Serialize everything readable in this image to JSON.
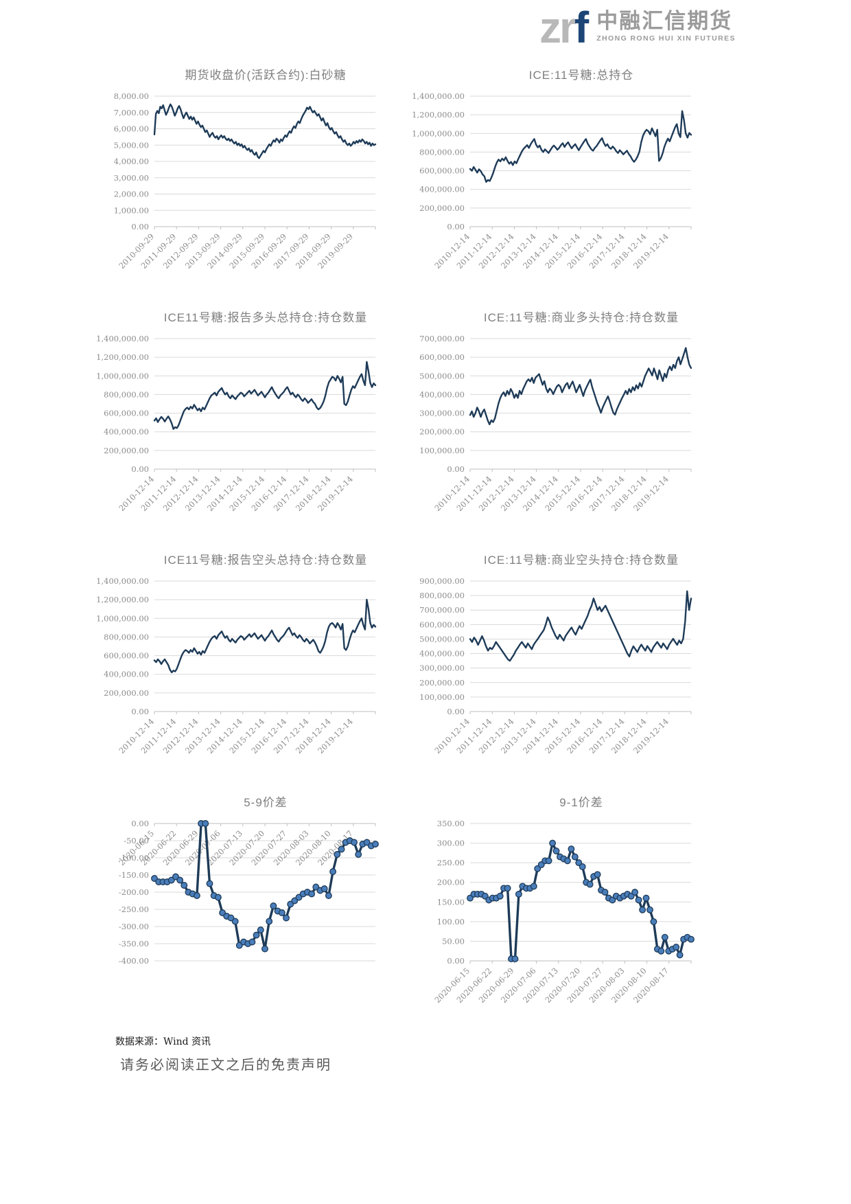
{
  "header": {
    "logo_zr": "zr",
    "logo_f": "f",
    "company_cn": "中融汇信期货",
    "company_en": "ZHONG RONG HUI XIN FUTURES"
  },
  "footer": {
    "source": "数据来源：Wind 资讯",
    "disclaimer": "请务必阅读正文之后的免责声明"
  },
  "colors": {
    "line": "#1e3b58",
    "marker_fill": "#4a7ebb",
    "grid": "#d9d9d9",
    "axis": "#bfbfbf",
    "title_gray": "#7f7f7f",
    "tick_gray": "#8c8c8c",
    "logo_blue": "#1d4677",
    "logo_gray": "#b8b8b8"
  },
  "chart_data": [
    {
      "id": "sugar-futures-close",
      "type": "line",
      "title": "期货收盘价(活跃合约):白砂糖",
      "markers": false,
      "x_axis": "bottom",
      "ylim": [
        0,
        8000
      ],
      "y_ticks": [
        "8,000.00",
        "7,000.00",
        "6,000.00",
        "5,000.00",
        "4,000.00",
        "3,000.00",
        "2,000.00",
        "1,000.00",
        "0.00"
      ],
      "x_labels": [
        "2010-09-29",
        "2011-09-29",
        "2012-09-29",
        "2013-09-29",
        "2014-09-29",
        "2015-09-29",
        "2016-09-29",
        "2017-09-29",
        "2018-09-29",
        "2019-09-29"
      ],
      "values": [
        5650,
        6900,
        7100,
        6950,
        7350,
        7250,
        7450,
        7150,
        6850,
        7050,
        7300,
        7500,
        7350,
        7100,
        6800,
        7000,
        7250,
        7400,
        7200,
        6900,
        6650,
        6850,
        7000,
        6800,
        6600,
        6750,
        6550,
        6700,
        6500,
        6300,
        6450,
        6250,
        6100,
        6200,
        6000,
        5800,
        5900,
        5700,
        5500,
        5650,
        5750,
        5550,
        5450,
        5550,
        5350,
        5500,
        5600,
        5450,
        5550,
        5400,
        5300,
        5400,
        5250,
        5350,
        5200,
        5100,
        5200,
        5000,
        5100,
        4950,
        5050,
        4850,
        4950,
        4800,
        4700,
        4800,
        4600,
        4700,
        4500,
        4400,
        4550,
        4300,
        4200,
        4350,
        4500,
        4650,
        4550,
        4750,
        4900,
        5050,
        4950,
        5150,
        5300,
        5200,
        5400,
        5300,
        5150,
        5350,
        5250,
        5450,
        5600,
        5500,
        5700,
        5850,
        5750,
        6000,
        6150,
        6050,
        6300,
        6450,
        6350,
        6600,
        6800,
        6950,
        7100,
        7300,
        7200,
        7350,
        7150,
        7000,
        7100,
        6950,
        6800,
        6900,
        6700,
        6500,
        6650,
        6400,
        6200,
        6350,
        6100,
        5950,
        6050,
        5850,
        5700,
        5800,
        5600,
        5450,
        5550,
        5350,
        5200,
        5300,
        5100,
        5000,
        5100,
        4950,
        5050,
        5200,
        5100,
        5250,
        5150,
        5300,
        5200,
        5350,
        5250,
        5100,
        5200,
        5050,
        5150,
        4950,
        5100,
        5000,
        5050
      ]
    },
    {
      "id": "ice11-total-open-interest",
      "type": "line",
      "title": "ICE:11号糖:总持仓",
      "markers": false,
      "x_axis": "bottom",
      "ylim": [
        0,
        1400000
      ],
      "y_ticks": [
        "1,400,000.00",
        "1,200,000.00",
        "1,000,000.00",
        "800,000.00",
        "600,000.00",
        "400,000.00",
        "200,000.00",
        "0.00"
      ],
      "x_labels": [
        "2010-12-14",
        "2011-12-14",
        "2012-12-14",
        "2013-12-14",
        "2014-12-14",
        "2015-12-14",
        "2016-12-14",
        "2017-12-14",
        "2018-12-14",
        "2019-12-14"
      ],
      "values": [
        620000,
        600000,
        640000,
        610000,
        580000,
        615000,
        595000,
        560000,
        540000,
        480000,
        500000,
        490000,
        530000,
        580000,
        640000,
        690000,
        720000,
        700000,
        730000,
        710000,
        745000,
        705000,
        675000,
        695000,
        660000,
        700000,
        680000,
        725000,
        765000,
        805000,
        835000,
        855000,
        875000,
        845000,
        885000,
        915000,
        940000,
        880000,
        850000,
        870000,
        825000,
        800000,
        830000,
        810000,
        790000,
        820000,
        850000,
        870000,
        850000,
        825000,
        845000,
        875000,
        895000,
        855000,
        885000,
        905000,
        870000,
        840000,
        865000,
        885000,
        850000,
        820000,
        855000,
        885000,
        915000,
        940000,
        890000,
        860000,
        830000,
        815000,
        845000,
        865000,
        895000,
        925000,
        950000,
        900000,
        865000,
        885000,
        850000,
        835000,
        860000,
        840000,
        810000,
        790000,
        820000,
        800000,
        775000,
        795000,
        815000,
        780000,
        755000,
        720000,
        695000,
        720000,
        755000,
        805000,
        905000,
        975000,
        1015000,
        1040000,
        1025000,
        990000,
        1055000,
        1015000,
        970000,
        1040000,
        705000,
        735000,
        785000,
        855000,
        905000,
        945000,
        915000,
        965000,
        1015000,
        1065000,
        1100000,
        1000000,
        960000,
        1240000,
        1145000,
        1000000,
        955000,
        1005000,
        985000
      ]
    },
    {
      "id": "ice11-reported-long-open-interest",
      "type": "line",
      "title": "ICE11号糖:报告多头总持仓:持仓数量",
      "markers": false,
      "x_axis": "bottom",
      "ylim": [
        0,
        1400000
      ],
      "y_ticks": [
        "1,400,000.00",
        "1,200,000.00",
        "1,000,000.00",
        "800,000.00",
        "600,000.00",
        "400,000.00",
        "200,000.00",
        "0.00"
      ],
      "x_labels": [
        "2010-12-14",
        "2011-12-14",
        "2012-12-14",
        "2013-12-14",
        "2014-12-14",
        "2015-12-14",
        "2016-12-14",
        "2017-12-14",
        "2018-12-14",
        "2019-12-14"
      ],
      "values": [
        520000,
        545000,
        505000,
        535000,
        560000,
        540000,
        510000,
        540000,
        565000,
        535000,
        490000,
        430000,
        450000,
        440000,
        470000,
        520000,
        570000,
        620000,
        645000,
        660000,
        640000,
        670000,
        650000,
        690000,
        660000,
        630000,
        650000,
        620000,
        660000,
        640000,
        680000,
        720000,
        760000,
        790000,
        805000,
        820000,
        790000,
        830000,
        850000,
        870000,
        830000,
        800000,
        820000,
        780000,
        760000,
        790000,
        770000,
        750000,
        780000,
        800000,
        820000,
        810000,
        780000,
        800000,
        820000,
        840000,
        810000,
        830000,
        850000,
        820000,
        790000,
        810000,
        830000,
        800000,
        770000,
        800000,
        820000,
        850000,
        880000,
        840000,
        810000,
        780000,
        760000,
        790000,
        810000,
        830000,
        860000,
        880000,
        840000,
        800000,
        820000,
        790000,
        770000,
        800000,
        780000,
        750000,
        730000,
        760000,
        740000,
        710000,
        730000,
        750000,
        720000,
        700000,
        660000,
        640000,
        655000,
        685000,
        725000,
        785000,
        870000,
        930000,
        960000,
        990000,
        980000,
        950000,
        1000000,
        970000,
        930000,
        990000,
        700000,
        685000,
        725000,
        790000,
        850000,
        890000,
        870000,
        910000,
        950000,
        990000,
        1020000,
        950000,
        900000,
        1150000,
        1050000,
        925000,
        880000,
        920000,
        900000
      ]
    },
    {
      "id": "ice11-commercial-long-open-interest",
      "type": "line",
      "title": "ICE:11号糖:商业多头持仓:持仓数量",
      "markers": false,
      "x_axis": "bottom",
      "ylim": [
        0,
        700000
      ],
      "y_ticks": [
        "700,000.00",
        "600,000.00",
        "500,000.00",
        "400,000.00",
        "300,000.00",
        "200,000.00",
        "100,000.00",
        "0.00"
      ],
      "x_labels": [
        "2010-12-14",
        "2011-12-14",
        "2012-12-14",
        "2013-12-14",
        "2014-12-14",
        "2015-12-14",
        "2016-12-14",
        "2017-12-14",
        "2018-12-14",
        "2019-12-14"
      ],
      "values": [
        290000,
        310000,
        280000,
        300000,
        330000,
        310000,
        280000,
        305000,
        320000,
        290000,
        260000,
        240000,
        262000,
        252000,
        272000,
        310000,
        350000,
        380000,
        400000,
        412000,
        392000,
        420000,
        400000,
        430000,
        412000,
        382000,
        402000,
        382000,
        420000,
        402000,
        430000,
        450000,
        470000,
        482000,
        470000,
        490000,
        462000,
        490000,
        500000,
        510000,
        482000,
        452000,
        472000,
        432000,
        412000,
        432000,
        422000,
        402000,
        422000,
        442000,
        452000,
        442000,
        412000,
        432000,
        452000,
        462000,
        432000,
        452000,
        470000,
        442000,
        412000,
        432000,
        452000,
        422000,
        392000,
        422000,
        442000,
        462000,
        480000,
        442000,
        412000,
        382000,
        352000,
        330000,
        302000,
        330000,
        352000,
        372000,
        390000,
        362000,
        330000,
        302000,
        292000,
        320000,
        342000,
        362000,
        382000,
        400000,
        420000,
        402000,
        430000,
        412000,
        440000,
        422000,
        450000,
        432000,
        462000,
        442000,
        470000,
        500000,
        520000,
        540000,
        522000,
        502000,
        540000,
        512000,
        482000,
        530000,
        502000,
        472000,
        512000,
        492000,
        530000,
        550000,
        530000,
        560000,
        542000,
        580000,
        600000,
        562000,
        590000,
        620000,
        650000,
        600000,
        560000,
        542000
      ]
    },
    {
      "id": "ice11-reported-short-open-interest",
      "type": "line",
      "title": "ICE11号糖:报告空头总持仓:持仓数量",
      "markers": false,
      "x_axis": "bottom",
      "ylim": [
        0,
        1400000
      ],
      "y_ticks": [
        "1,400,000.00",
        "1,200,000.00",
        "1,000,000.00",
        "800,000.00",
        "600,000.00",
        "400,000.00",
        "200,000.00",
        "0.00"
      ],
      "x_labels": [
        "2010-12-14",
        "2011-12-14",
        "2012-12-14",
        "2013-12-14",
        "2014-12-14",
        "2015-12-14",
        "2016-12-14",
        "2017-12-14",
        "2018-12-14",
        "2019-12-14"
      ],
      "values": [
        550000,
        530000,
        560000,
        540000,
        510000,
        540000,
        560000,
        530000,
        500000,
        450000,
        420000,
        440000,
        430000,
        460000,
        510000,
        560000,
        610000,
        640000,
        660000,
        650000,
        630000,
        660000,
        640000,
        680000,
        650000,
        620000,
        640000,
        610000,
        650000,
        630000,
        670000,
        710000,
        750000,
        780000,
        800000,
        810000,
        780000,
        820000,
        840000,
        860000,
        820000,
        790000,
        810000,
        770000,
        750000,
        780000,
        760000,
        740000,
        770000,
        790000,
        810000,
        800000,
        770000,
        790000,
        810000,
        830000,
        800000,
        820000,
        840000,
        810000,
        780000,
        800000,
        820000,
        790000,
        760000,
        790000,
        810000,
        840000,
        870000,
        830000,
        800000,
        770000,
        750000,
        780000,
        800000,
        820000,
        850000,
        880000,
        900000,
        860000,
        820000,
        840000,
        810000,
        790000,
        820000,
        800000,
        770000,
        750000,
        780000,
        760000,
        730000,
        750000,
        770000,
        740000,
        700000,
        650000,
        630000,
        660000,
        700000,
        760000,
        850000,
        910000,
        940000,
        950000,
        930000,
        900000,
        950000,
        920000,
        880000,
        940000,
        680000,
        660000,
        700000,
        770000,
        830000,
        870000,
        850000,
        890000,
        930000,
        970000,
        1000000,
        930000,
        880000,
        1200000,
        1100000,
        950000,
        900000,
        930000,
        910000
      ]
    },
    {
      "id": "ice11-commercial-short-open-interest",
      "type": "line",
      "title": "ICE:11号糖:商业空头持仓:持仓数量",
      "markers": false,
      "x_axis": "bottom",
      "ylim": [
        0,
        900000
      ],
      "y_ticks": [
        "900,000.00",
        "800,000.00",
        "700,000.00",
        "600,000.00",
        "500,000.00",
        "400,000.00",
        "300,000.00",
        "200,000.00",
        "100,000.00",
        "0.00"
      ],
      "x_labels": [
        "2010-12-14",
        "2011-12-14",
        "2012-12-14",
        "2013-12-14",
        "2014-12-14",
        "2015-12-14",
        "2016-12-14",
        "2017-12-14",
        "2018-12-14",
        "2019-12-14"
      ],
      "values": [
        500000,
        480000,
        510000,
        490000,
        460000,
        490000,
        520000,
        490000,
        450000,
        420000,
        440000,
        430000,
        452000,
        480000,
        460000,
        440000,
        420000,
        400000,
        380000,
        360000,
        350000,
        372000,
        392000,
        420000,
        440000,
        462000,
        480000,
        460000,
        440000,
        470000,
        450000,
        430000,
        462000,
        482000,
        500000,
        522000,
        542000,
        562000,
        600000,
        650000,
        620000,
        580000,
        550000,
        520000,
        500000,
        530000,
        510000,
        490000,
        522000,
        542000,
        562000,
        580000,
        552000,
        530000,
        562000,
        590000,
        570000,
        600000,
        630000,
        660000,
        700000,
        730000,
        780000,
        740000,
        700000,
        722000,
        690000,
        712000,
        730000,
        700000,
        670000,
        640000,
        610000,
        580000,
        550000,
        520000,
        490000,
        460000,
        430000,
        400000,
        380000,
        420000,
        450000,
        430000,
        410000,
        440000,
        462000,
        440000,
        420000,
        452000,
        432000,
        410000,
        442000,
        462000,
        480000,
        460000,
        440000,
        470000,
        450000,
        430000,
        462000,
        482000,
        502000,
        480000,
        460000,
        490000,
        470000,
        500000,
        620000,
        830000,
        700000,
        780000
      ]
    },
    {
      "id": "spread-5-9",
      "type": "line",
      "title": "5-9价差",
      "markers": true,
      "x_axis": "zero-top",
      "ylim": [
        -400,
        0
      ],
      "y_ticks": [
        "0.00",
        "-50.00",
        "-100.00",
        "-150.00",
        "-200.00",
        "-250.00",
        "-300.00",
        "-350.00",
        "-400.00"
      ],
      "x_labels": [
        "2020-06-15",
        "2020-06-22",
        "2020-06-29",
        "2020-07-06",
        "2020-07-13",
        "2020-07-20",
        "2020-07-27",
        "2020-08-03",
        "2020-08-10",
        "2020-08-17"
      ],
      "values": [
        -160,
        -170,
        -170,
        -170,
        -165,
        -155,
        -165,
        -180,
        -200,
        -205,
        -210,
        0,
        0,
        -175,
        -210,
        -215,
        -260,
        -270,
        -275,
        -285,
        -355,
        -345,
        -350,
        -345,
        -325,
        -310,
        -365,
        -285,
        -240,
        -255,
        -260,
        -275,
        -235,
        -225,
        -215,
        -205,
        -200,
        -205,
        -185,
        -195,
        -190,
        -210,
        -140,
        -90,
        -75,
        -55,
        -50,
        -55,
        -90,
        -60,
        -55,
        -65,
        -60
      ]
    },
    {
      "id": "spread-9-1",
      "type": "line",
      "title": "9-1价差",
      "markers": true,
      "x_axis": "bottom",
      "ylim": [
        0,
        350
      ],
      "y_ticks": [
        "350.00",
        "300.00",
        "250.00",
        "200.00",
        "150.00",
        "100.00",
        "50.00",
        "0.00"
      ],
      "x_labels": [
        "2020-06-15",
        "2020-06-22",
        "2020-06-29",
        "2020-07-06",
        "2020-07-13",
        "2020-07-20",
        "2020-07-27",
        "2020-08-03",
        "2020-08-10",
        "2020-08-17"
      ],
      "values": [
        160,
        170,
        170,
        170,
        165,
        155,
        160,
        160,
        165,
        185,
        185,
        5,
        5,
        170,
        190,
        185,
        185,
        190,
        235,
        245,
        255,
        255,
        300,
        280,
        265,
        260,
        255,
        285,
        265,
        250,
        240,
        200,
        195,
        215,
        220,
        180,
        175,
        160,
        155,
        165,
        160,
        165,
        170,
        165,
        175,
        155,
        130,
        160,
        130,
        100,
        30,
        25,
        60,
        25,
        30,
        35,
        15,
        55,
        60,
        55
      ]
    }
  ]
}
